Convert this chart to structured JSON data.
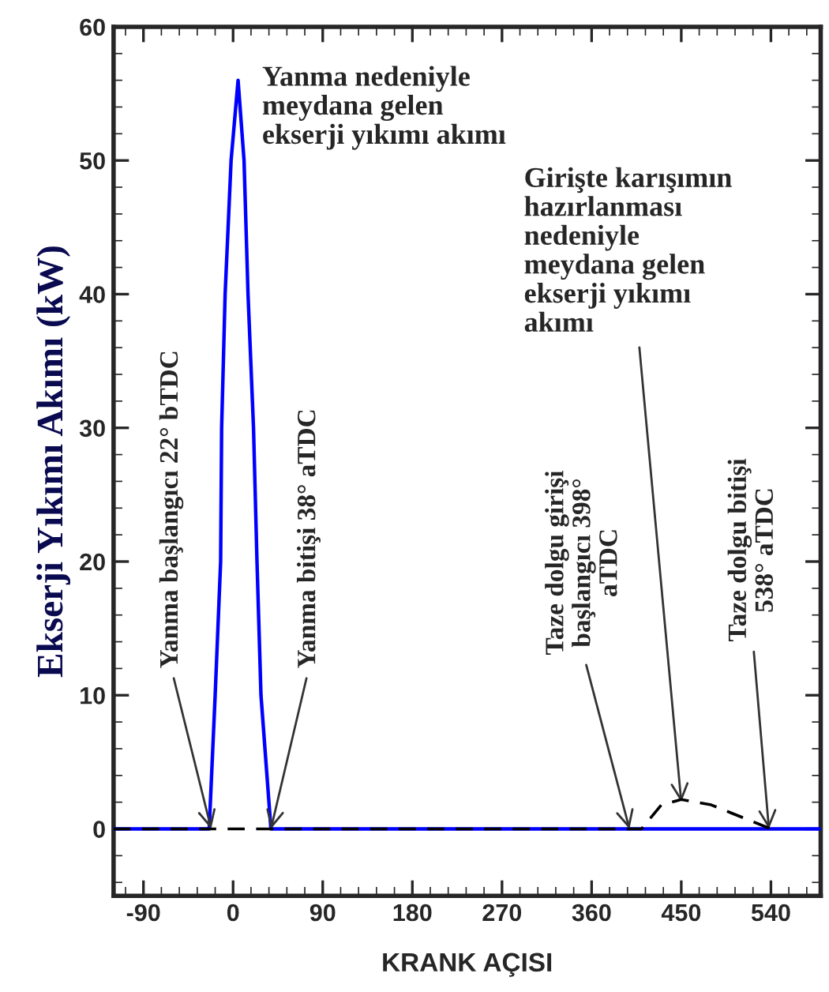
{
  "chart_data": {
    "type": "line",
    "xlabel": "KRANK AÇISI",
    "ylabel": "Ekserji Yıkımı Akımı (kW)",
    "xlim": [
      -120,
      590
    ],
    "ylim": [
      -5,
      60
    ],
    "xticks": [
      -90,
      0,
      90,
      180,
      270,
      360,
      450,
      540
    ],
    "yticks": [
      0,
      10,
      20,
      30,
      40,
      50,
      60
    ],
    "grid": false,
    "legend": false,
    "marker": "none",
    "series": [
      {
        "color": "#0000ff",
        "line_style": "solid",
        "x": [
          -120,
          -24,
          -18,
          -12.5,
          -11.5,
          -8,
          -2,
          5,
          11,
          15,
          20.5,
          24,
          28,
          38,
          590
        ],
        "values": [
          0,
          0,
          10,
          20,
          30,
          40,
          50,
          56,
          50,
          40,
          30,
          20,
          10,
          0,
          0
        ]
      },
      {
        "color": "#000000",
        "line_style": "dashed",
        "x": [
          -120,
          410,
          430,
          450,
          480,
          500,
          540
        ],
        "values": [
          0,
          0,
          1.8,
          2.2,
          1.8,
          1.2,
          0
        ]
      }
    ],
    "annotations": [
      "Yanma nedeniyle\nmeydana gelen\nekserji yıkımı akımı",
      {
        "text": "Yanma başlangıcı 22° bTDC",
        "x": -22,
        "y": 0
      },
      {
        "text": "Yanma bitişi 38° aTDC",
        "x": 38,
        "y": 0
      },
      {
        "text": "Taze dolgu girişi\nbaşlangıcı 398°\naTDC",
        "x": 398,
        "y": 0
      },
      {
        "text": "Girişte karışımın\nhazırlanması\nnedeniyle\nmeydana gelen\nekserji yıkımı\nakımı",
        "x": 450,
        "y": 2
      },
      {
        "text": "Taze dolgu bitişi\n538° aTDC",
        "x": 538,
        "y": 0
      }
    ]
  }
}
